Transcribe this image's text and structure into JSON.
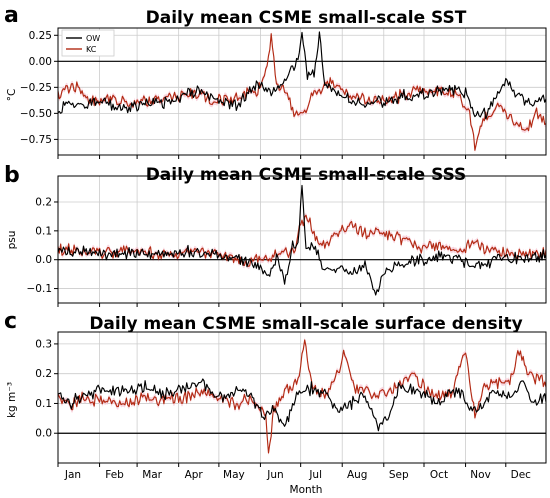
{
  "figure": {
    "x_axis_label": "Month",
    "months": [
      "Jan",
      "Feb",
      "Mar",
      "Apr",
      "May",
      "Jun",
      "Jul",
      "Aug",
      "Sep",
      "Oct",
      "Nov",
      "Dec"
    ],
    "legend": [
      {
        "label": "OW",
        "color": "#000000"
      },
      {
        "label": "KC",
        "color": "#b22a14"
      }
    ],
    "colors": {
      "ow": "#000000",
      "kc": "#b22a14",
      "kc_shading": "#f7c9d6",
      "grid": "#cccccc",
      "zero_line": "#000000"
    }
  },
  "chart_data": [
    {
      "letter": "a",
      "type": "line",
      "title": "Daily mean CSME small-scale SST",
      "ylabel": "°C",
      "ylim": [
        -0.9,
        0.32
      ],
      "yticks": [
        0.25,
        0.0,
        -0.25,
        -0.5,
        -0.75
      ],
      "ytick_labels": [
        "0.25",
        "0.00",
        "−0.25",
        "−0.50",
        "−0.75"
      ],
      "x_range_days": [
        1,
        365
      ],
      "grid": true,
      "zero_line": true,
      "legend_position": "top-left",
      "series": [
        {
          "name": "OW",
          "color": "#000000",
          "keypoints": [
            [
              1,
              -0.48
            ],
            [
              10,
              -0.4
            ],
            [
              20,
              -0.44
            ],
            [
              31,
              -0.38
            ],
            [
              45,
              -0.45
            ],
            [
              59,
              -0.42
            ],
            [
              75,
              -0.4
            ],
            [
              90,
              -0.36
            ],
            [
              105,
              -0.28
            ],
            [
              120,
              -0.36
            ],
            [
              135,
              -0.42
            ],
            [
              145,
              -0.28
            ],
            [
              152,
              -0.22
            ],
            [
              160,
              -0.3
            ],
            [
              168,
              -0.2
            ],
            [
              174,
              -0.1
            ],
            [
              180,
              0.0
            ],
            [
              183,
              0.27
            ],
            [
              187,
              -0.15
            ],
            [
              192,
              -0.1
            ],
            [
              196,
              0.25
            ],
            [
              200,
              -0.2
            ],
            [
              213,
              -0.35
            ],
            [
              230,
              -0.4
            ],
            [
              244,
              -0.38
            ],
            [
              258,
              -0.33
            ],
            [
              274,
              -0.32
            ],
            [
              290,
              -0.26
            ],
            [
              305,
              -0.3
            ],
            [
              312,
              -0.5
            ],
            [
              320,
              -0.5
            ],
            [
              335,
              -0.18
            ],
            [
              345,
              -0.35
            ],
            [
              355,
              -0.4
            ],
            [
              365,
              -0.34
            ]
          ]
        },
        {
          "name": "KC",
          "color": "#b22a14",
          "keypoints": [
            [
              1,
              -0.32
            ],
            [
              12,
              -0.22
            ],
            [
              25,
              -0.38
            ],
            [
              40,
              -0.36
            ],
            [
              55,
              -0.4
            ],
            [
              70,
              -0.38
            ],
            [
              85,
              -0.35
            ],
            [
              100,
              -0.3
            ],
            [
              115,
              -0.36
            ],
            [
              128,
              -0.38
            ],
            [
              140,
              -0.32
            ],
            [
              150,
              -0.3
            ],
            [
              157,
              -0.05
            ],
            [
              160,
              0.27
            ],
            [
              164,
              -0.2
            ],
            [
              170,
              -0.3
            ],
            [
              178,
              -0.5
            ],
            [
              185,
              -0.5
            ],
            [
              190,
              -0.35
            ],
            [
              198,
              -0.25
            ],
            [
              205,
              -0.2
            ],
            [
              220,
              -0.35
            ],
            [
              240,
              -0.38
            ],
            [
              255,
              -0.34
            ],
            [
              270,
              -0.28
            ],
            [
              285,
              -0.28
            ],
            [
              300,
              -0.32
            ],
            [
              308,
              -0.5
            ],
            [
              312,
              -0.83
            ],
            [
              318,
              -0.55
            ],
            [
              330,
              -0.45
            ],
            [
              340,
              -0.55
            ],
            [
              350,
              -0.68
            ],
            [
              358,
              -0.48
            ],
            [
              365,
              -0.6
            ]
          ]
        }
      ]
    },
    {
      "letter": "b",
      "type": "line",
      "title": "Daily mean CSME small-scale SSS",
      "ylabel": "psu",
      "ylim": [
        -0.15,
        0.29
      ],
      "yticks": [
        0.2,
        0.1,
        0.0,
        -0.1
      ],
      "ytick_labels": [
        "0.2",
        "0.1",
        "0.0",
        "−0.1"
      ],
      "x_range_days": [
        1,
        365
      ],
      "grid": true,
      "zero_line": true,
      "series": [
        {
          "name": "OW",
          "color": "#000000",
          "keypoints": [
            [
              1,
              0.03
            ],
            [
              20,
              0.025
            ],
            [
              40,
              0.02
            ],
            [
              60,
              0.025
            ],
            [
              80,
              0.02
            ],
            [
              100,
              0.03
            ],
            [
              120,
              0.02
            ],
            [
              140,
              0.0
            ],
            [
              150,
              -0.02
            ],
            [
              158,
              -0.05
            ],
            [
              165,
              0.02
            ],
            [
              170,
              -0.08
            ],
            [
              176,
              0.06
            ],
            [
              180,
              0.05
            ],
            [
              183,
              0.27
            ],
            [
              186,
              0.03
            ],
            [
              190,
              0.06
            ],
            [
              195,
              0.02
            ],
            [
              200,
              -0.05
            ],
            [
              210,
              -0.03
            ],
            [
              220,
              -0.04
            ],
            [
              230,
              -0.02
            ],
            [
              238,
              -0.12
            ],
            [
              244,
              -0.05
            ],
            [
              255,
              -0.02
            ],
            [
              270,
              0.0
            ],
            [
              290,
              0.01
            ],
            [
              310,
              -0.02
            ],
            [
              330,
              0.0
            ],
            [
              350,
              0.01
            ],
            [
              365,
              0.015
            ]
          ]
        },
        {
          "name": "KC",
          "color": "#b22a14",
          "keypoints": [
            [
              1,
              0.04
            ],
            [
              20,
              0.03
            ],
            [
              40,
              0.025
            ],
            [
              60,
              0.03
            ],
            [
              80,
              0.02
            ],
            [
              100,
              0.025
            ],
            [
              120,
              0.02
            ],
            [
              140,
              -0.01
            ],
            [
              150,
              0.0
            ],
            [
              160,
              0.01
            ],
            [
              170,
              0.03
            ],
            [
              177,
              0.02
            ],
            [
              182,
              0.12
            ],
            [
              187,
              0.15
            ],
            [
              193,
              0.07
            ],
            [
              200,
              0.05
            ],
            [
              210,
              0.1
            ],
            [
              220,
              0.11
            ],
            [
              230,
              0.09
            ],
            [
              240,
              0.1
            ],
            [
              250,
              0.08
            ],
            [
              260,
              0.07
            ],
            [
              270,
              0.04
            ],
            [
              280,
              0.05
            ],
            [
              290,
              0.04
            ],
            [
              300,
              0.03
            ],
            [
              310,
              0.06
            ],
            [
              320,
              0.04
            ],
            [
              330,
              0.03
            ],
            [
              345,
              0.02
            ],
            [
              365,
              0.02
            ]
          ]
        }
      ]
    },
    {
      "letter": "c",
      "type": "line",
      "title": "Daily mean CSME small-scale surface density",
      "ylabel": "kg m⁻³",
      "ylim": [
        -0.1,
        0.34
      ],
      "yticks": [
        0.3,
        0.2,
        0.1,
        0.0
      ],
      "ytick_labels": [
        "0.3",
        "0.2",
        "0.1",
        "0.0"
      ],
      "x_range_days": [
        1,
        365
      ],
      "grid": true,
      "zero_line": true,
      "series": [
        {
          "name": "OW",
          "color": "#000000",
          "keypoints": [
            [
              1,
              0.14
            ],
            [
              10,
              0.1
            ],
            [
              20,
              0.13
            ],
            [
              35,
              0.15
            ],
            [
              50,
              0.14
            ],
            [
              65,
              0.16
            ],
            [
              80,
              0.13
            ],
            [
              95,
              0.15
            ],
            [
              108,
              0.18
            ],
            [
              115,
              0.14
            ],
            [
              125,
              0.12
            ],
            [
              135,
              0.15
            ],
            [
              145,
              0.13
            ],
            [
              155,
              0.05
            ],
            [
              162,
              0.08
            ],
            [
              170,
              0.02
            ],
            [
              180,
              0.13
            ],
            [
              190,
              0.15
            ],
            [
              200,
              0.13
            ],
            [
              210,
              0.08
            ],
            [
              220,
              0.1
            ],
            [
              228,
              0.13
            ],
            [
              235,
              0.08
            ],
            [
              240,
              0.02
            ],
            [
              248,
              0.05
            ],
            [
              255,
              0.16
            ],
            [
              265,
              0.14
            ],
            [
              275,
              0.13
            ],
            [
              285,
              0.1
            ],
            [
              295,
              0.14
            ],
            [
              305,
              0.12
            ],
            [
              310,
              0.07
            ],
            [
              318,
              0.1
            ],
            [
              328,
              0.14
            ],
            [
              338,
              0.12
            ],
            [
              348,
              0.17
            ],
            [
              355,
              0.1
            ],
            [
              365,
              0.12
            ]
          ]
        },
        {
          "name": "KC",
          "color": "#b22a14",
          "keypoints": [
            [
              1,
              0.12
            ],
            [
              10,
              0.09
            ],
            [
              20,
              0.12
            ],
            [
              35,
              0.11
            ],
            [
              50,
              0.1
            ],
            [
              65,
              0.12
            ],
            [
              80,
              0.11
            ],
            [
              95,
              0.12
            ],
            [
              108,
              0.14
            ],
            [
              120,
              0.12
            ],
            [
              135,
              0.1
            ],
            [
              145,
              0.12
            ],
            [
              152,
              0.08
            ],
            [
              156,
              0.06
            ],
            [
              158,
              -0.07
            ],
            [
              162,
              0.08
            ],
            [
              170,
              0.14
            ],
            [
              180,
              0.17
            ],
            [
              185,
              0.32
            ],
            [
              190,
              0.16
            ],
            [
              200,
              0.12
            ],
            [
              210,
              0.2
            ],
            [
              215,
              0.27
            ],
            [
              222,
              0.15
            ],
            [
              232,
              0.14
            ],
            [
              245,
              0.13
            ],
            [
              255,
              0.16
            ],
            [
              265,
              0.2
            ],
            [
              275,
              0.15
            ],
            [
              285,
              0.13
            ],
            [
              295,
              0.14
            ],
            [
              305,
              0.27
            ],
            [
              312,
              0.06
            ],
            [
              318,
              0.15
            ],
            [
              330,
              0.17
            ],
            [
              338,
              0.18
            ],
            [
              345,
              0.27
            ],
            [
              352,
              0.2
            ],
            [
              360,
              0.18
            ],
            [
              365,
              0.17
            ]
          ]
        }
      ]
    }
  ]
}
